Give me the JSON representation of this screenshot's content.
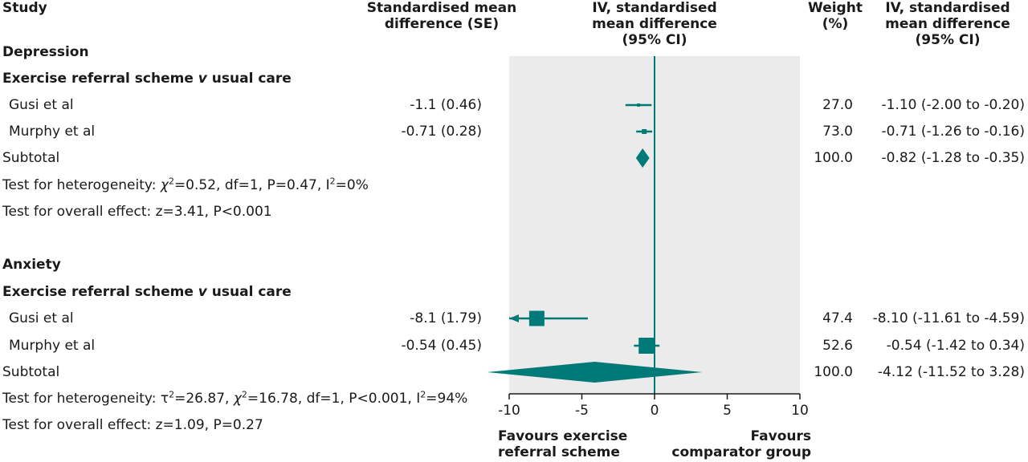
{
  "headers": {
    "study": "Study",
    "smd_line1": "Standardised mean",
    "smd_line2": "difference (SE)",
    "iv_line1": "IV, standardised",
    "iv_line2": "mean difference",
    "iv_line3": "(95% CI)",
    "weight_line1": "Weight",
    "weight_line2": "(%)",
    "ivr_line1": "IV, standardised",
    "ivr_line2": "mean difference",
    "ivr_line3": "(95% CI)"
  },
  "groups": [
    {
      "title": "Depression",
      "comparison_pre": "Exercise referral scheme ",
      "comparison_v": "v",
      "comparison_post": " usual care",
      "studies": [
        {
          "name": "Gusi et al",
          "smd_se": "-1.1 (0.46)",
          "weight": "27.0",
          "ci_text": "-1.10 (-2.00 to -0.20)"
        },
        {
          "name": "Murphy et al",
          "smd_se": "-0.71 (0.28)",
          "weight": "73.0",
          "ci_text": "-0.71 (-1.26 to -0.16)"
        }
      ],
      "subtotal": {
        "label": "Subtotal",
        "weight": "100.0",
        "ci_text": "-0.82 (-1.28 to -0.35)"
      },
      "het_pre": "Test for heterogeneity: ",
      "het_chi": "χ",
      "het_mid": "=0.52, df=1, P=0.47, I",
      "het_post": "=0%",
      "overall": "Test for overall effect: z=3.41, P<0.001"
    },
    {
      "title": "Anxiety",
      "comparison_pre": "Exercise referral scheme ",
      "comparison_v": "v",
      "comparison_post": " usual care",
      "studies": [
        {
          "name": "Gusi et al",
          "smd_se": "-8.1  (1.79)",
          "weight": "47.4",
          "ci_text": "-8.10 (-11.61 to -4.59)"
        },
        {
          "name": "Murphy et al",
          "smd_se": "-0.54 (0.45)",
          "weight": "52.6",
          "ci_text": "-0.54 (-1.42 to 0.34)"
        }
      ],
      "subtotal": {
        "label": "Subtotal",
        "weight": "100.0",
        "ci_text": "-4.12 (-11.52 to 3.28)"
      },
      "het_pre": "Test for heterogeneity: τ",
      "het_chi_pre": "=26.87, ",
      "het_chi": "χ",
      "het_mid": "=16.78, df=1, P<0.001, I",
      "het_post": "=94%",
      "overall": "Test for overall effect: z=1.09, P=0.27"
    }
  ],
  "superscript": "2",
  "favours_left_1": "Favours exercise",
  "favours_left_2": "referral scheme",
  "favours_right_1": "Favours",
  "favours_right_2": "comparator group",
  "colors": {
    "accent": "#007a78",
    "panel": "#ebebeb",
    "text": "#1a1a1a"
  },
  "chart_data": {
    "type": "forest",
    "xlim": [
      -10,
      10
    ],
    "xticks": [
      -10,
      -5,
      0,
      5,
      10
    ],
    "xticklabels": [
      "-10",
      "-5",
      "0",
      "5",
      "10"
    ],
    "rows": [
      {
        "group": "Depression",
        "study": "Gusi et al",
        "kind": "study",
        "est": -1.1,
        "lo": -2.0,
        "hi": -0.2,
        "weight": 27.0
      },
      {
        "group": "Depression",
        "study": "Murphy et al",
        "kind": "study",
        "est": -0.71,
        "lo": -1.26,
        "hi": -0.16,
        "weight": 73.0
      },
      {
        "group": "Depression",
        "study": "Subtotal",
        "kind": "subtotal",
        "est": -0.82,
        "lo": -1.28,
        "hi": -0.35,
        "weight": 100.0
      },
      {
        "group": "Anxiety",
        "study": "Gusi et al",
        "kind": "study",
        "est": -8.1,
        "lo": -11.61,
        "hi": -4.59,
        "weight": 47.4
      },
      {
        "group": "Anxiety",
        "study": "Murphy et al",
        "kind": "study",
        "est": -0.54,
        "lo": -1.42,
        "hi": 0.34,
        "weight": 52.6
      },
      {
        "group": "Anxiety",
        "study": "Subtotal",
        "kind": "subtotal",
        "est": -4.12,
        "lo": -11.52,
        "hi": 3.28,
        "weight": 100.0
      }
    ]
  }
}
